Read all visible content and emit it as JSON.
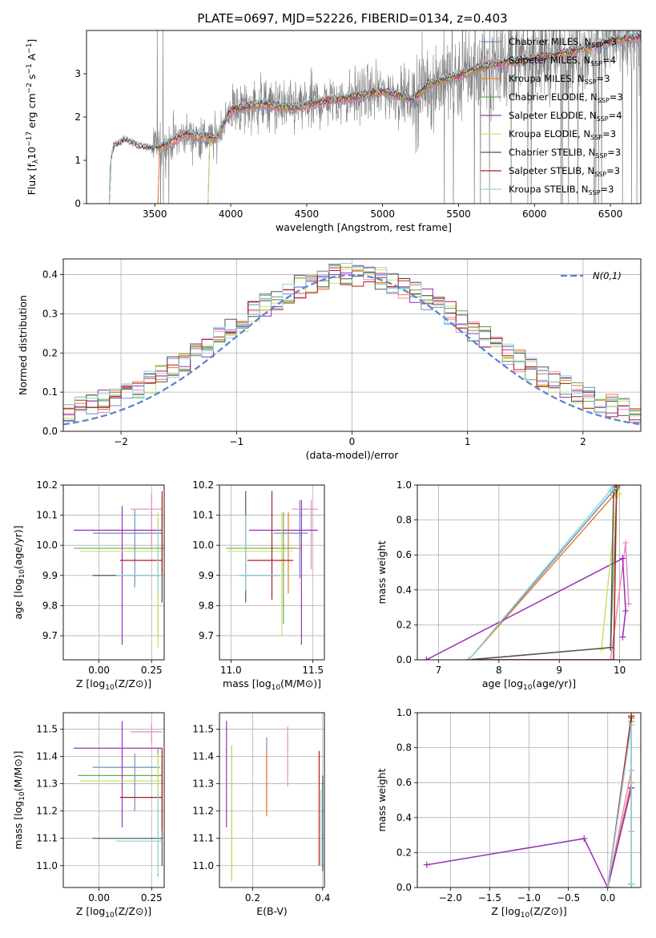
{
  "figure": {
    "title": "PLATE=0697, MJD=52226, FIBERID=0134, z=0.403"
  },
  "colors": {
    "Chabrier MILES": "#6c8ebf",
    "Salpeter MILES": "#e78ac3",
    "Kroupa MILES": "#e87d2b",
    "Chabrier ELODIE": "#6aa84f",
    "Salpeter ELODIE": "#9b30b7",
    "Kroupa ELODIE": "#c9e46a",
    "Chabrier STELIB": "#555555",
    "Salpeter STELIB": "#b01c1c",
    "Kroupa STELIB": "#8ed6e0",
    "data": "#808080",
    "gauss": "#5b87cf"
  },
  "legend_spectrum": [
    {
      "name": "Chabrier MILES",
      "nssp": "3"
    },
    {
      "name": "Salpeter MILES",
      "nssp": "4"
    },
    {
      "name": "Kroupa MILES",
      "nssp": "3"
    },
    {
      "name": "Chabrier ELODIE",
      "nssp": "3"
    },
    {
      "name": "Salpeter ELODIE",
      "nssp": "4"
    },
    {
      "name": "Kroupa ELODIE",
      "nssp": "3"
    },
    {
      "name": "Chabrier STELIB",
      "nssp": "3"
    },
    {
      "name": "Salpeter STELIB",
      "nssp": "3"
    },
    {
      "name": "Kroupa STELIB",
      "nssp": "3"
    }
  ],
  "chart_data": [
    {
      "id": "spectrum",
      "type": "line",
      "xlabel": "wavelength [Angstrom, rest frame]",
      "ylabel": "Flux [f",
      "xlim": [
        3050,
        6700
      ],
      "ylim": [
        0,
        4.0
      ],
      "xticks": [
        3500,
        4000,
        4500,
        5000,
        5500,
        6000,
        6500
      ],
      "yticks": [
        0,
        1,
        2,
        3
      ],
      "data_range": [
        3200,
        6700
      ],
      "model_start": {
        "MILES": 3520,
        "ELODIE": 3850,
        "STELIB": 3200
      },
      "continuum_points": [
        [
          3200,
          0.0
        ],
        [
          3205,
          0.9
        ],
        [
          3230,
          1.3
        ],
        [
          3300,
          1.45
        ],
        [
          3400,
          1.3
        ],
        [
          3500,
          1.25
        ],
        [
          3600,
          1.4
        ],
        [
          3700,
          1.6
        ],
        [
          3800,
          1.55
        ],
        [
          3900,
          1.5
        ],
        [
          4000,
          2.15
        ],
        [
          4200,
          2.3
        ],
        [
          4400,
          2.2
        ],
        [
          4600,
          2.35
        ],
        [
          4800,
          2.45
        ],
        [
          5000,
          2.6
        ],
        [
          5200,
          2.4
        ],
        [
          5300,
          2.75
        ],
        [
          5500,
          2.95
        ],
        [
          5700,
          3.2
        ],
        [
          5900,
          3.3
        ],
        [
          6100,
          3.4
        ],
        [
          6300,
          3.55
        ],
        [
          6500,
          3.75
        ],
        [
          6700,
          3.85
        ]
      ]
    },
    {
      "id": "residuals",
      "type": "histogram",
      "xlabel": "(data-model)/error",
      "ylabel": "Normed distribution",
      "xlim": [
        -2.5,
        2.5
      ],
      "ylim": [
        0,
        0.44
      ],
      "xticks": [
        -2,
        -1,
        0,
        1,
        2
      ],
      "yticks": [
        0.0,
        0.1,
        0.2,
        0.3,
        0.4
      ],
      "bin_width": 0.1,
      "gauss_label": "N(0,1)"
    },
    {
      "id": "age-vs-z",
      "type": "errorbar",
      "xlabel": "Z [log",
      "ylabel": "age  [log",
      "xlim": [
        -0.17,
        0.31
      ],
      "ylim": [
        9.62,
        10.2
      ],
      "xticks": [
        0.0,
        0.25
      ],
      "yticks": [
        9.7,
        9.8,
        9.9,
        10.0,
        10.1,
        10.2
      ],
      "points": [
        {
          "series": "Chabrier MILES",
          "x": 0.17,
          "y": 10.04,
          "xerr": [
            0.2,
            0.13
          ],
          "yerr": [
            0.18,
            0.08
          ]
        },
        {
          "series": "Salpeter MILES",
          "x": 0.25,
          "y": 10.12,
          "xerr": [
            0.1,
            0.05
          ],
          "yerr": [
            0.12,
            0.05
          ]
        },
        {
          "series": "Kroupa MILES",
          "x": 0.3,
          "y": 9.99,
          "xerr": [
            0.02,
            0.02
          ],
          "yerr": [
            0.18,
            0.17
          ]
        },
        {
          "series": "Chabrier ELODIE",
          "x": 0.28,
          "y": 9.99,
          "xerr": [
            0.4,
            0.02
          ],
          "yerr": [
            0.3,
            0.1
          ]
        },
        {
          "series": "Salpeter ELODIE",
          "x": 0.11,
          "y": 10.05,
          "xerr": [
            0.23,
            0.19
          ],
          "yerr": [
            0.38,
            0.08
          ]
        },
        {
          "series": "Kroupa ELODIE",
          "x": 0.28,
          "y": 9.98,
          "xerr": [
            0.37,
            0.02
          ],
          "yerr": [
            0.32,
            0.13
          ]
        },
        {
          "series": "Chabrier STELIB",
          "x": 0.3,
          "y": 9.9,
          "xerr": [
            0.33,
            0.0
          ],
          "yerr": [
            0.09,
            0.2
          ]
        },
        {
          "series": "Salpeter STELIB",
          "x": 0.3,
          "y": 9.95,
          "xerr": [
            0.2,
            0.0
          ],
          "yerr": [
            0.05,
            0.23
          ]
        },
        {
          "series": "Kroupa STELIB",
          "x": 0.28,
          "y": 9.9,
          "xerr": [
            0.2,
            0.02
          ],
          "yerr": [
            0.05,
            0.15
          ]
        }
      ]
    },
    {
      "id": "age-vs-mass",
      "type": "errorbar",
      "xlabel": "mass [log",
      "ylabel": "",
      "xlim": [
        10.93,
        11.57
      ],
      "ylim": [
        9.62,
        10.2
      ],
      "xticks": [
        11.0,
        11.5
      ],
      "yticks": [
        9.7,
        9.8,
        9.9,
        10.0,
        10.1,
        10.2
      ],
      "points": [
        {
          "series": "Chabrier MILES",
          "x": 11.42,
          "y": 10.04,
          "xerr": [
            0.16,
            0.05
          ],
          "yerr": [
            0.15,
            0.11
          ]
        },
        {
          "series": "Salpeter MILES",
          "x": 11.49,
          "y": 10.12,
          "xerr": [
            0.12,
            0.04
          ],
          "yerr": [
            0.2,
            0.03
          ]
        },
        {
          "series": "Kroupa MILES",
          "x": 11.35,
          "y": 9.99,
          "xerr": [
            0.12,
            0.08
          ],
          "yerr": [
            0.15,
            0.12
          ]
        },
        {
          "series": "Chabrier ELODIE",
          "x": 11.32,
          "y": 9.99,
          "xerr": [
            0.35,
            0.07
          ],
          "yerr": [
            0.25,
            0.12
          ]
        },
        {
          "series": "Salpeter ELODIE",
          "x": 11.43,
          "y": 10.05,
          "xerr": [
            0.32,
            0.1
          ],
          "yerr": [
            0.38,
            0.1
          ]
        },
        {
          "series": "Kroupa ELODIE",
          "x": 11.31,
          "y": 9.98,
          "xerr": [
            0.33,
            0.07
          ],
          "yerr": [
            0.28,
            0.13
          ]
        },
        {
          "series": "Chabrier STELIB",
          "x": 11.09,
          "y": 9.9,
          "xerr": [
            0.04,
            0.21
          ],
          "yerr": [
            0.09,
            0.28
          ]
        },
        {
          "series": "Salpeter STELIB",
          "x": 11.25,
          "y": 9.95,
          "xerr": [
            0.15,
            0.13
          ],
          "yerr": [
            0.13,
            0.23
          ]
        },
        {
          "series": "Kroupa STELIB",
          "x": 11.09,
          "y": 9.9,
          "xerr": [
            0.04,
            0.21
          ],
          "yerr": [
            0.05,
            0.2
          ]
        }
      ]
    },
    {
      "id": "massweight-vs-age",
      "type": "line",
      "xlabel": "age  [log",
      "ylabel": "mass weight",
      "xlim": [
        6.65,
        10.35
      ],
      "ylim": [
        0,
        1.0
      ],
      "xticks": [
        7,
        8,
        9,
        10
      ],
      "yticks": [
        0.0,
        0.2,
        0.4,
        0.6,
        0.8,
        1.0
      ],
      "series": [
        {
          "name": "Chabrier MILES",
          "x": [
            7.5,
            9.9,
            9.95
          ],
          "y": [
            0.0,
            0.97,
            1.0
          ]
        },
        {
          "name": "Salpeter MILES",
          "x": [
            7.5,
            9.85,
            10.1,
            10.15
          ],
          "y": [
            0.0,
            0.0,
            0.67,
            0.32
          ]
        },
        {
          "name": "Kroupa MILES",
          "x": [
            7.5,
            9.9,
            10.0
          ],
          "y": [
            0.0,
            0.94,
            1.0
          ]
        },
        {
          "name": "Chabrier ELODIE",
          "x": [
            7.5,
            9.85,
            9.95,
            10.0
          ],
          "y": [
            0.0,
            0.07,
            0.95,
            1.0
          ]
        },
        {
          "name": "Salpeter ELODIE",
          "x": [
            6.8,
            10.05,
            10.1,
            10.05
          ],
          "y": [
            0.0,
            0.58,
            0.28,
            0.13
          ]
        },
        {
          "name": "Kroupa ELODIE",
          "x": [
            9.7,
            9.95,
            10.0
          ],
          "y": [
            0.06,
            0.93,
            0.95
          ]
        },
        {
          "name": "Chabrier STELIB",
          "x": [
            7.5,
            9.85,
            9.9,
            9.92
          ],
          "y": [
            0.0,
            0.07,
            0.97,
            0.99
          ]
        },
        {
          "name": "Salpeter STELIB",
          "x": [
            7.5,
            9.9,
            9.95
          ],
          "y": [
            0.0,
            0.0,
            1.0
          ]
        },
        {
          "name": "Kroupa STELIB",
          "x": [
            7.5,
            9.85,
            9.9
          ],
          "y": [
            0.0,
            0.97,
            0.98
          ]
        }
      ]
    },
    {
      "id": "mass-vs-z",
      "type": "errorbar",
      "xlabel": "Z [log",
      "ylabel": "mass [log",
      "xlim": [
        -0.17,
        0.31
      ],
      "ylim": [
        10.92,
        11.56
      ],
      "xticks": [
        0.0,
        0.25
      ],
      "yticks": [
        11.0,
        11.1,
        11.2,
        11.3,
        11.4,
        11.5
      ],
      "points": [
        {
          "series": "Chabrier MILES",
          "x": 0.17,
          "y": 11.36,
          "xerr": [
            0.2,
            0.12
          ],
          "yerr": [
            0.16,
            0.05
          ]
        },
        {
          "series": "Salpeter MILES",
          "x": 0.25,
          "y": 11.49,
          "xerr": [
            0.1,
            0.05
          ],
          "yerr": [
            0.04,
            0.03
          ]
        },
        {
          "series": "Kroupa MILES",
          "x": 0.3,
          "y": 11.33,
          "xerr": [
            0.02,
            0.0
          ],
          "yerr": [
            0.1,
            0.09
          ]
        },
        {
          "series": "Chabrier ELODIE",
          "x": 0.28,
          "y": 11.33,
          "xerr": [
            0.38,
            0.02
          ],
          "yerr": [
            0.37,
            0.1
          ]
        },
        {
          "series": "Salpeter ELODIE",
          "x": 0.11,
          "y": 11.43,
          "xerr": [
            0.23,
            0.19
          ],
          "yerr": [
            0.29,
            0.1
          ]
        },
        {
          "series": "Kroupa ELODIE",
          "x": 0.28,
          "y": 11.31,
          "xerr": [
            0.37,
            0.02
          ],
          "yerr": [
            0.34,
            0.1
          ]
        },
        {
          "series": "Chabrier STELIB",
          "x": 0.3,
          "y": 11.1,
          "xerr": [
            0.33,
            0.0
          ],
          "yerr": [
            0.1,
            0.28
          ]
        },
        {
          "series": "Salpeter STELIB",
          "x": 0.3,
          "y": 11.25,
          "xerr": [
            0.2,
            0.0
          ],
          "yerr": [
            0.12,
            0.18
          ]
        },
        {
          "series": "Kroupa STELIB",
          "x": 0.28,
          "y": 11.09,
          "xerr": [
            0.2,
            0.02
          ],
          "yerr": [
            0.11,
            0.18
          ]
        }
      ]
    },
    {
      "id": "mass-vs-ebv",
      "type": "errorbar",
      "xlabel": "E(B-V)",
      "ylabel": "",
      "xlim": [
        0.105,
        0.405
      ],
      "ylim": [
        10.92,
        11.56
      ],
      "xticks": [
        0.2,
        0.4
      ],
      "yticks": [
        11.0,
        11.1,
        11.2,
        11.3,
        11.4,
        11.5
      ],
      "points": [
        {
          "series": "Chabrier MILES",
          "x": 0.24,
          "y": 11.36,
          "xerr": [
            0,
            0
          ],
          "yerr": [
            0.16,
            0.11
          ]
        },
        {
          "series": "Salpeter MILES",
          "x": 0.3,
          "y": 11.4,
          "xerr": [
            0,
            0
          ],
          "yerr": [
            0.11,
            0.11
          ]
        },
        {
          "series": "Kroupa MILES",
          "x": 0.24,
          "y": 11.3,
          "xerr": [
            0,
            0
          ],
          "yerr": [
            0.12,
            0.12
          ]
        },
        {
          "series": "Chabrier ELODIE",
          "x": 0.14,
          "y": 11.3,
          "xerr": [
            0,
            0
          ],
          "yerr": [
            0.35,
            0.14
          ]
        },
        {
          "series": "Salpeter ELODIE",
          "x": 0.125,
          "y": 11.35,
          "xerr": [
            0,
            0
          ],
          "yerr": [
            0.21,
            0.18
          ]
        },
        {
          "series": "Kroupa ELODIE",
          "x": 0.14,
          "y": 11.2,
          "xerr": [
            0,
            0
          ],
          "yerr": [
            0.26,
            0.24
          ]
        },
        {
          "series": "Chabrier STELIB",
          "x": 0.4,
          "y": 11.15,
          "xerr": [
            0,
            0
          ],
          "yerr": [
            0.17,
            0.18
          ]
        },
        {
          "series": "Salpeter STELIB",
          "x": 0.39,
          "y": 11.2,
          "xerr": [
            0,
            0
          ],
          "yerr": [
            0.2,
            0.22
          ]
        },
        {
          "series": "Kroupa STELIB",
          "x": 0.395,
          "y": 11.1,
          "xerr": [
            0,
            0
          ],
          "yerr": [
            0.1,
            0.18
          ]
        }
      ]
    },
    {
      "id": "massweight-vs-z",
      "type": "line",
      "xlabel": "Z [log",
      "ylabel": "mass weight",
      "xlim": [
        -2.42,
        0.42
      ],
      "ylim": [
        0,
        1.0
      ],
      "xticks": [
        -2.0,
        -1.5,
        -1.0,
        -0.5,
        0.0
      ],
      "yticks": [
        0.0,
        0.2,
        0.4,
        0.6,
        0.8,
        1.0
      ],
      "series": [
        {
          "name": "Chabrier MILES",
          "x": [
            0.0,
            0.3,
            0.3
          ],
          "y": [
            0.0,
            0.57,
            0.98
          ]
        },
        {
          "name": "Salpeter MILES",
          "x": [
            0.0,
            0.3,
            0.3
          ],
          "y": [
            0.0,
            0.67,
            0.32
          ]
        },
        {
          "name": "Kroupa MILES",
          "x": [
            0.0,
            0.3,
            0.3
          ],
          "y": [
            0.0,
            0.6,
            0.98
          ]
        },
        {
          "name": "Chabrier ELODIE",
          "x": [
            0.0,
            0.3,
            0.3
          ],
          "y": [
            0.0,
            0.95,
            0.02
          ]
        },
        {
          "name": "Salpeter ELODIE",
          "x": [
            -2.3,
            -0.3,
            0.0,
            0.3
          ],
          "y": [
            0.13,
            0.28,
            0.0,
            0.57
          ]
        },
        {
          "name": "Kroupa ELODIE",
          "x": [
            0.0,
            0.3,
            0.3
          ],
          "y": [
            0.0,
            0.93,
            0.02
          ]
        },
        {
          "name": "Chabrier STELIB",
          "x": [
            0.0,
            0.3,
            0.3
          ],
          "y": [
            0.0,
            0.97,
            0.02
          ]
        },
        {
          "name": "Salpeter STELIB",
          "x": [
            0.0,
            0.3,
            0.3
          ],
          "y": [
            0.0,
            0.98,
            0.02
          ]
        },
        {
          "name": "Kroupa STELIB",
          "x": [
            0.0,
            0.3,
            0.3
          ],
          "y": [
            0.0,
            0.93,
            0.02
          ]
        }
      ]
    }
  ]
}
